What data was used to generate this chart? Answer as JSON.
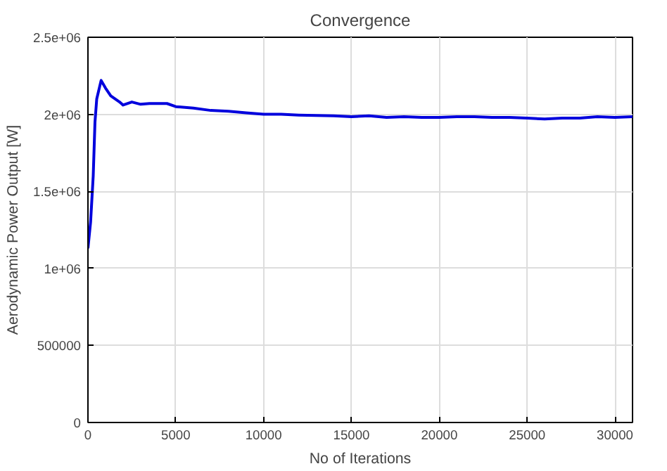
{
  "chart_data": {
    "type": "line",
    "title": "Convergence",
    "xlabel": "No of Iterations",
    "ylabel": "Aerodynamic Power Output [W]",
    "x": [
      0,
      150,
      300,
      400,
      500,
      750,
      1000,
      1300,
      1800,
      2000,
      2500,
      3000,
      3500,
      4500,
      5000,
      6000,
      7000,
      8000,
      9000,
      10000,
      11000,
      12000,
      14000,
      15000,
      16000,
      17000,
      18000,
      19000,
      20000,
      21000,
      22000,
      23000,
      24000,
      25000,
      26000,
      27000,
      28000,
      29000,
      30000,
      31000
    ],
    "series": [
      {
        "color": "#0000dd",
        "values": [
          1130000,
          1300000,
          1600000,
          1950000,
          2100000,
          2220000,
          2170000,
          2120000,
          2080000,
          2060000,
          2080000,
          2065000,
          2070000,
          2070000,
          2050000,
          2040000,
          2025000,
          2020000,
          2010000,
          2000000,
          2000000,
          1995000,
          1990000,
          1985000,
          1990000,
          1980000,
          1985000,
          1980000,
          1980000,
          1985000,
          1985000,
          1980000,
          1980000,
          1975000,
          1970000,
          1975000,
          1975000,
          1985000,
          1980000,
          1985000
        ]
      }
    ],
    "xlim": [
      0,
      31000
    ],
    "xticks": [
      0,
      5000,
      10000,
      15000,
      20000,
      25000,
      30000
    ],
    "ylim": [
      0,
      2500000
    ],
    "yticks": [
      {
        "value": 0,
        "label": "0"
      },
      {
        "value": 500000,
        "label": "500000"
      },
      {
        "value": 1000000,
        "label": "1e+06"
      },
      {
        "value": 1500000,
        "label": "1.5e+06"
      },
      {
        "value": 2000000,
        "label": "2e+06"
      },
      {
        "value": 2500000,
        "label": "2.5e+06"
      }
    ],
    "grid": true,
    "line_style": "solid",
    "marker": "none"
  }
}
